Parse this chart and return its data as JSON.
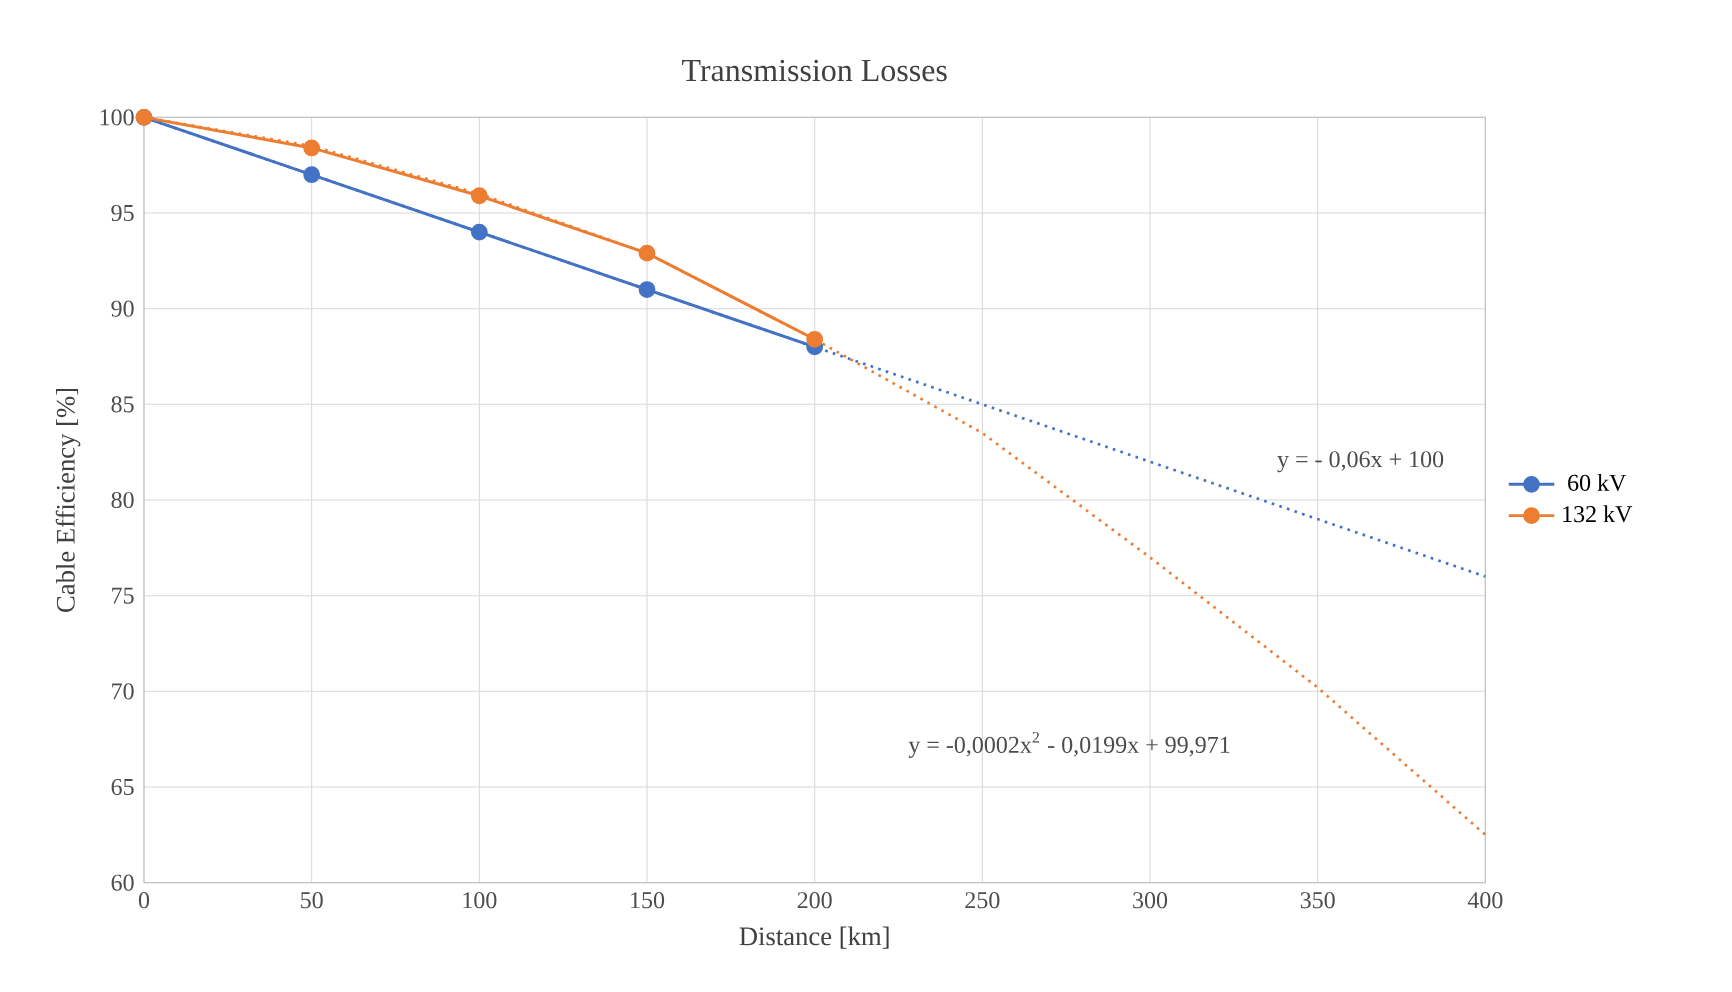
{
  "chart_data": {
    "type": "line",
    "title": "Transmission Losses",
    "xlabel": "Distance [km]",
    "ylabel": "Cable Efficiency [%]",
    "xlim": [
      0,
      400
    ],
    "xticks": [
      0,
      50,
      100,
      150,
      200,
      250,
      300,
      350,
      400
    ],
    "ylim": [
      60,
      100
    ],
    "yticks": [
      60,
      65,
      70,
      75,
      80,
      85,
      90,
      95,
      100
    ],
    "grid": true,
    "legend": "right",
    "series": [
      {
        "name": "60 kV",
        "color": "#4472c4",
        "x": [
          0,
          50,
          100,
          150,
          200
        ],
        "values": [
          100,
          97,
          94,
          91,
          88
        ],
        "marker": "circle",
        "line_style": "solid"
      },
      {
        "name": "132 kV",
        "color": "#ed7d31",
        "x": [
          0,
          50,
          100,
          150,
          200
        ],
        "values": [
          100,
          98.4,
          95.9,
          92.9,
          88.4
        ],
        "marker": "circle",
        "line_style": "solid"
      },
      {
        "color": "#4472c4",
        "x": [
          0,
          100,
          200,
          300,
          400
        ],
        "values": [
          100,
          94,
          88,
          82,
          76
        ],
        "marker": "none",
        "line_style": "dotted"
      },
      {
        "color": "#ed7d31",
        "x": [
          0,
          50,
          100,
          150,
          200,
          250,
          300,
          350,
          400
        ],
        "values": [
          100,
          98.5,
          96,
          92.9,
          88.4,
          83.5,
          77,
          70.2,
          62.5
        ],
        "marker": "none",
        "line_style": "dotted"
      }
    ],
    "annotations": [
      "y = - 0,06x + 100",
      "y = -0,0002x$^{2}$ - 0,0199x + 99,971"
    ]
  }
}
